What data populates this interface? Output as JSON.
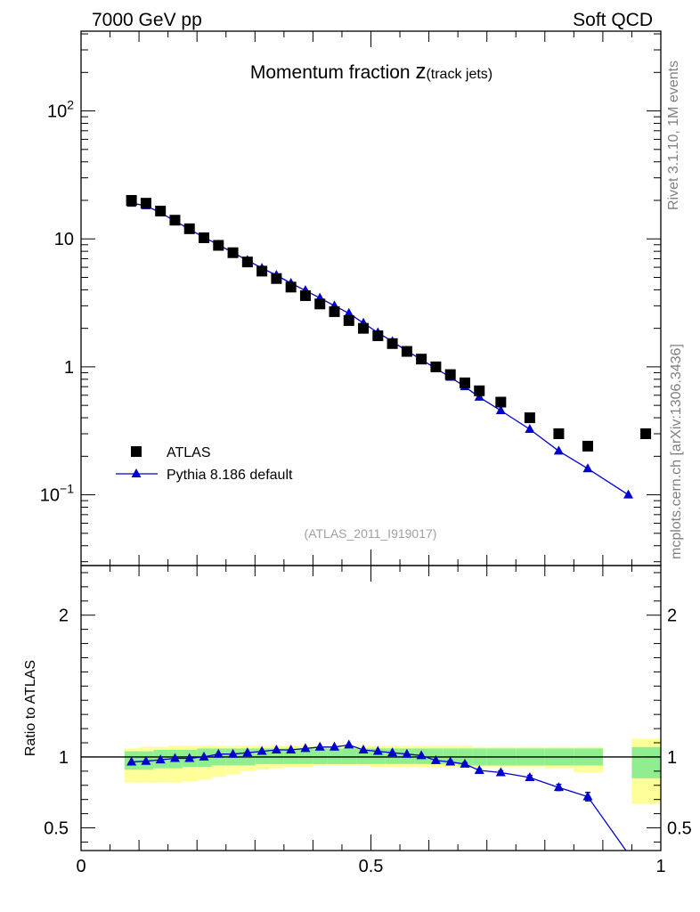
{
  "header": {
    "left": "7000 GeV pp",
    "right": "Soft QCD"
  },
  "side_labels": {
    "top": "Rivet 3.1.10,  1M events",
    "bottom": "mcplots.cern.ch [arXiv:1306.3436]"
  },
  "chart_data": [
    {
      "type": "scatter",
      "title_main": "Momentum fraction ",
      "title_var": "z",
      "title_sub": "(track jets)",
      "analysis_tag": "(ATLAS_2011_I919017)",
      "ylog": true,
      "xlim": [
        0,
        1
      ],
      "ylim": [
        0.028,
        420
      ],
      "yticks": [
        {
          "value": 0.1,
          "base": "10",
          "exp": "−1"
        },
        {
          "value": 1,
          "base": "1",
          "exp": ""
        },
        {
          "value": 10,
          "base": "10",
          "exp": ""
        },
        {
          "value": 100,
          "base": "10",
          "exp": "2"
        }
      ],
      "legend_position": "bottom-left",
      "series": [
        {
          "name": "ATLAS",
          "marker": "square",
          "color": "#000000",
          "x": [
            0.087,
            0.112,
            0.137,
            0.162,
            0.187,
            0.212,
            0.237,
            0.262,
            0.287,
            0.312,
            0.337,
            0.362,
            0.387,
            0.412,
            0.437,
            0.462,
            0.487,
            0.512,
            0.537,
            0.562,
            0.587,
            0.612,
            0.637,
            0.662,
            0.687,
            0.724,
            0.774,
            0.824,
            0.874,
            0.974
          ],
          "y": [
            20.0,
            19.0,
            16.5,
            14.0,
            12.0,
            10.2,
            8.9,
            7.8,
            6.6,
            5.6,
            4.9,
            4.2,
            3.6,
            3.1,
            2.7,
            2.3,
            2.0,
            1.75,
            1.52,
            1.32,
            1.15,
            1.0,
            0.87,
            0.75,
            0.65,
            0.53,
            0.4,
            0.3,
            0.24,
            0.3
          ]
        },
        {
          "name": "Pythia 8.186 default",
          "marker": "triangle",
          "color": "#0000cc",
          "x": [
            0.087,
            0.112,
            0.137,
            0.162,
            0.187,
            0.212,
            0.237,
            0.262,
            0.287,
            0.312,
            0.337,
            0.362,
            0.387,
            0.412,
            0.437,
            0.462,
            0.487,
            0.512,
            0.537,
            0.562,
            0.587,
            0.612,
            0.637,
            0.662,
            0.687,
            0.724,
            0.774,
            0.824,
            0.874,
            0.944
          ],
          "y": [
            19.0,
            18.2,
            16.0,
            13.8,
            11.9,
            10.3,
            9.0,
            7.8,
            6.8,
            5.9,
            5.2,
            4.5,
            3.95,
            3.45,
            3.0,
            2.62,
            2.2,
            1.85,
            1.58,
            1.33,
            1.14,
            0.97,
            0.83,
            0.7,
            0.58,
            0.455,
            0.325,
            0.22,
            0.16,
            0.1
          ]
        }
      ]
    },
    {
      "type": "scatter",
      "ylabel": "Ratio to ATLAS",
      "xlim": [
        0,
        1
      ],
      "ylim": [
        0.34,
        2.35
      ],
      "reference_value": 1,
      "xticks": [
        {
          "value": 0,
          "label": "0"
        },
        {
          "value": 0.5,
          "label": "0.5"
        },
        {
          "value": 1,
          "label": "1"
        }
      ],
      "yticks": [
        {
          "value": 0.5,
          "label": "0.5"
        },
        {
          "value": 1,
          "label": "1"
        },
        {
          "value": 2,
          "label": "2"
        }
      ],
      "uncertainty_bands": {
        "bin_edges": [
          0.075,
          0.1,
          0.125,
          0.15,
          0.175,
          0.2,
          0.225,
          0.25,
          0.275,
          0.3,
          0.325,
          0.35,
          0.375,
          0.4,
          0.425,
          0.45,
          0.475,
          0.5,
          0.525,
          0.55,
          0.575,
          0.6,
          0.625,
          0.65,
          0.675,
          0.7,
          0.75,
          0.8,
          0.85,
          0.9
        ],
        "green_low": [
          0.91,
          0.91,
          0.92,
          0.92,
          0.93,
          0.93,
          0.94,
          0.94,
          0.94,
          0.95,
          0.95,
          0.95,
          0.95,
          0.95,
          0.95,
          0.95,
          0.95,
          0.95,
          0.95,
          0.95,
          0.95,
          0.95,
          0.95,
          0.94,
          0.94,
          0.94,
          0.94,
          0.94,
          0.94
        ],
        "green_high": [
          1.04,
          1.04,
          1.05,
          1.05,
          1.05,
          1.06,
          1.06,
          1.06,
          1.06,
          1.06,
          1.06,
          1.06,
          1.06,
          1.06,
          1.06,
          1.06,
          1.06,
          1.06,
          1.06,
          1.06,
          1.06,
          1.06,
          1.06,
          1.06,
          1.06,
          1.06,
          1.06,
          1.06,
          1.06
        ],
        "yellow_low": [
          0.82,
          0.82,
          0.82,
          0.82,
          0.83,
          0.84,
          0.86,
          0.88,
          0.9,
          0.91,
          0.92,
          0.93,
          0.93,
          0.94,
          0.94,
          0.94,
          0.94,
          0.93,
          0.93,
          0.93,
          0.93,
          0.93,
          0.93,
          0.93,
          0.93,
          0.93,
          0.93,
          0.92,
          0.89
        ],
        "yellow_high": [
          1.06,
          1.07,
          1.07,
          1.08,
          1.08,
          1.08,
          1.08,
          1.08,
          1.08,
          1.08,
          1.08,
          1.08,
          1.08,
          1.08,
          1.08,
          1.08,
          1.08,
          1.08,
          1.08,
          1.08,
          1.08,
          1.08,
          1.08,
          1.08,
          1.07,
          1.07,
          1.07,
          1.07,
          1.07
        ],
        "last_bin_edges": [
          0.95,
          1.0
        ],
        "last_green": [
          0.85,
          1.07
        ],
        "last_yellow": [
          0.67,
          1.13
        ],
        "colors": {
          "green": "#90ee90",
          "yellow": "#ffff99"
        }
      },
      "ratio_series": {
        "name": "Pythia 8.186 default",
        "color": "#0000cc",
        "x": [
          0.087,
          0.112,
          0.137,
          0.162,
          0.187,
          0.212,
          0.237,
          0.262,
          0.287,
          0.312,
          0.337,
          0.362,
          0.387,
          0.412,
          0.437,
          0.462,
          0.487,
          0.512,
          0.537,
          0.562,
          0.587,
          0.612,
          0.637,
          0.662,
          0.687,
          0.724,
          0.774,
          0.824,
          0.874
        ],
        "y": [
          0.965,
          0.97,
          0.98,
          0.99,
          0.99,
          1.0,
          1.02,
          1.02,
          1.03,
          1.04,
          1.05,
          1.05,
          1.06,
          1.07,
          1.07,
          1.085,
          1.05,
          1.04,
          1.03,
          1.02,
          1.01,
          0.975,
          0.965,
          0.95,
          0.905,
          0.89,
          0.855,
          0.785,
          0.72
        ],
        "yerr": [
          0.005,
          0.005,
          0.005,
          0.005,
          0.005,
          0.005,
          0.005,
          0.005,
          0.005,
          0.005,
          0.005,
          0.005,
          0.005,
          0.005,
          0.005,
          0.006,
          0.006,
          0.006,
          0.006,
          0.007,
          0.007,
          0.008,
          0.009,
          0.01,
          0.011,
          0.013,
          0.016,
          0.022,
          0.03
        ],
        "tail_end": [
          0.94,
          0.34
        ]
      }
    }
  ]
}
